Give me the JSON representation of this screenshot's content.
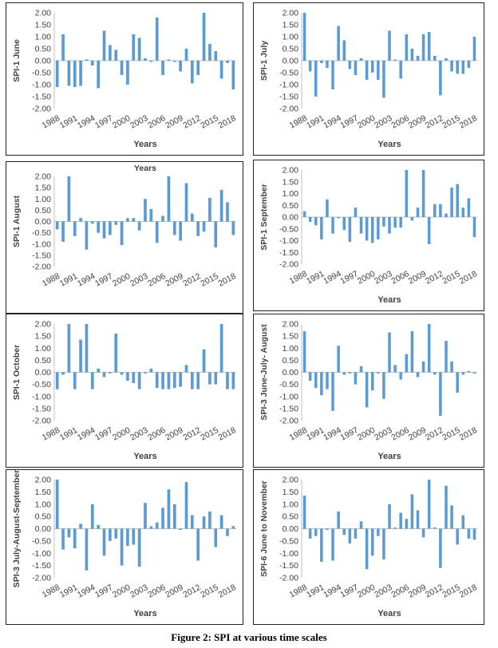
{
  "figure_caption": "Figure 2: SPI at various time scales",
  "colors": {
    "bar": "#5b9bd5",
    "axis": "#bfbfbf",
    "text": "#404040"
  },
  "chart_data": [
    {
      "type": "bar",
      "ylabel": "SPI-1  June",
      "xlabel": "Years",
      "title": "",
      "ylim": [
        -2,
        2
      ],
      "yticks": [
        "2.00",
        "1.50",
        "1.00",
        "0.50",
        "0.00",
        "-0.50",
        "-1.00",
        "-1.50",
        "-2.00"
      ],
      "xtick_labels": [
        "1988",
        "1991",
        "1994",
        "1997",
        "2000",
        "2003",
        "2006",
        "2009",
        "2012",
        "2015",
        "2018"
      ],
      "x": [
        1988,
        1989,
        1990,
        1991,
        1992,
        1993,
        1994,
        1995,
        1996,
        1997,
        1998,
        1999,
        2000,
        2001,
        2002,
        2003,
        2004,
        2005,
        2006,
        2007,
        2008,
        2009,
        2010,
        2011,
        2012,
        2013,
        2014,
        2015,
        2016,
        2017,
        2018
      ],
      "values": [
        -1.1,
        1.1,
        -1.05,
        -1.1,
        -1.05,
        0.05,
        -0.2,
        -1.15,
        1.25,
        0.65,
        0.45,
        -0.6,
        -1.0,
        1.1,
        0.95,
        0.1,
        -0.05,
        1.8,
        -0.6,
        0.05,
        -0.05,
        -0.45,
        0.5,
        -0.95,
        -0.6,
        2.0,
        0.7,
        0.4,
        -0.75,
        -0.1,
        -1.2
      ]
    },
    {
      "type": "bar",
      "ylabel": "SPI-1  July",
      "xlabel": "Years",
      "title": "",
      "ylim": [
        -2,
        2
      ],
      "yticks": [
        "2.00",
        "1.50",
        "1.00",
        "0.50",
        "0.00",
        "-0.50",
        "-1.00",
        "-1.50",
        "-2.00"
      ],
      "xtick_labels": [
        "1988",
        "1991",
        "1994",
        "1997",
        "2000",
        "2003",
        "2006",
        "2009",
        "2012",
        "2015",
        "2018"
      ],
      "x": [
        1988,
        1989,
        1990,
        1991,
        1992,
        1993,
        1994,
        1995,
        1996,
        1997,
        1998,
        1999,
        2000,
        2001,
        2002,
        2003,
        2004,
        2005,
        2006,
        2007,
        2008,
        2009,
        2010,
        2011,
        2012,
        2013,
        2014,
        2015,
        2016,
        2017,
        2018
      ],
      "values": [
        2.0,
        -0.45,
        -1.5,
        -0.1,
        -0.3,
        -1.2,
        1.45,
        0.85,
        -0.35,
        -0.6,
        0.1,
        -0.8,
        -0.5,
        -0.8,
        -1.55,
        1.25,
        0.05,
        -0.75,
        1.1,
        0.5,
        0.2,
        1.1,
        1.2,
        0.2,
        -1.45,
        0.1,
        -0.45,
        -0.55,
        -0.55,
        -0.3,
        1.0
      ]
    },
    {
      "type": "bar",
      "ylabel": "SPI-1 August",
      "xlabel": "",
      "title": "Years",
      "ylim": [
        -2,
        2
      ],
      "yticks": [
        "2.00",
        "1.50",
        "1.00",
        "0.50",
        "0.00",
        "-0.50",
        "-1.00",
        "-1.50",
        "-2.00"
      ],
      "xtick_labels": [
        "1988",
        "1991",
        "1994",
        "1997",
        "2000",
        "2003",
        "2006",
        "2009",
        "2012",
        "2015",
        "2018"
      ],
      "x": [
        1988,
        1989,
        1990,
        1991,
        1992,
        1993,
        1994,
        1995,
        1996,
        1997,
        1998,
        1999,
        2000,
        2001,
        2002,
        2003,
        2004,
        2005,
        2006,
        2007,
        2008,
        2009,
        2010,
        2011,
        2012,
        2013,
        2014,
        2015,
        2016,
        2017,
        2018
      ],
      "values": [
        -0.35,
        -0.9,
        2.0,
        -0.65,
        0.15,
        -1.25,
        -0.1,
        -0.5,
        -0.75,
        -0.6,
        -0.15,
        -1.05,
        0.15,
        0.15,
        -0.4,
        1.0,
        0.55,
        -0.95,
        0.25,
        2.0,
        -0.6,
        -0.85,
        1.7,
        0.35,
        -0.65,
        -0.45,
        1.05,
        -1.15,
        1.4,
        0.85,
        -0.6
      ]
    },
    {
      "type": "bar",
      "ylabel": "SPI-1 September",
      "xlabel": "Years",
      "title": "",
      "ylim": [
        -2,
        2
      ],
      "yticks": [
        "2.00",
        "1.50",
        "1.00",
        "0.50",
        "0.00",
        "-0.50",
        "-1.00",
        "-1.50",
        "-2.00"
      ],
      "xtick_labels": [
        "1988",
        "1991",
        "1994",
        "1997",
        "2000",
        "2003",
        "2006",
        "2009",
        "2012",
        "2015",
        "2018"
      ],
      "x": [
        1988,
        1989,
        1990,
        1991,
        1992,
        1993,
        1994,
        1995,
        1996,
        1997,
        1998,
        1999,
        2000,
        2001,
        2002,
        2003,
        2004,
        2005,
        2006,
        2007,
        2008,
        2009,
        2010,
        2011,
        2012,
        2013,
        2014,
        2015,
        2016,
        2017,
        2018
      ],
      "values": [
        0.25,
        -0.2,
        -0.35,
        -0.95,
        0.75,
        -0.7,
        -0.05,
        -0.55,
        -1.05,
        0.4,
        -0.7,
        -1.0,
        -1.1,
        -0.95,
        -0.4,
        -0.7,
        -0.45,
        -0.45,
        2.0,
        -0.15,
        0.4,
        2.0,
        -1.15,
        0.55,
        0.55,
        0.15,
        1.25,
        1.4,
        0.4,
        0.8,
        -0.85
      ]
    },
    {
      "type": "bar",
      "ylabel": "SPI-1 October",
      "xlabel": "Years",
      "title": "",
      "ylim": [
        -2,
        2
      ],
      "yticks": [
        "2.00",
        "1.50",
        "1.00",
        "0.50",
        "0.00",
        "-0.50",
        "-1.00",
        "-1.50",
        "-2.00"
      ],
      "xtick_labels": [
        "1988",
        "1991",
        "1994",
        "1997",
        "2000",
        "2003",
        "2006",
        "2009",
        "2012",
        "2015",
        "2018"
      ],
      "x": [
        1988,
        1989,
        1990,
        1991,
        1992,
        1993,
        1994,
        1995,
        1996,
        1997,
        1998,
        1999,
        2000,
        2001,
        2002,
        2003,
        2004,
        2005,
        2006,
        2007,
        2008,
        2009,
        2010,
        2011,
        2012,
        2013,
        2014,
        2015,
        2016,
        2017,
        2018
      ],
      "values": [
        -0.7,
        -0.1,
        2.0,
        -0.7,
        1.35,
        2.0,
        -0.7,
        0.15,
        -0.2,
        -0.05,
        1.6,
        -0.1,
        -0.35,
        -0.45,
        -0.7,
        -0.05,
        0.15,
        -0.65,
        -0.7,
        -0.7,
        -0.65,
        -0.6,
        0.3,
        -0.7,
        -0.7,
        0.95,
        -0.5,
        -0.5,
        2.0,
        -0.7,
        -0.7
      ]
    },
    {
      "type": "bar",
      "ylabel": "SPI-3 June-July- August",
      "xlabel": "Years",
      "title": "",
      "ylim": [
        -2,
        2
      ],
      "yticks": [
        "2.00",
        "1.50",
        "1.00",
        "0.50",
        "0.00",
        "-0.50",
        "-1.00",
        "-1.50",
        "-2.00"
      ],
      "xtick_labels": [
        "1988",
        "1991",
        "1994",
        "1997",
        "2000",
        "2003",
        "2006",
        "2009",
        "2012",
        "2015",
        "2018"
      ],
      "x": [
        1988,
        1989,
        1990,
        1991,
        1992,
        1993,
        1994,
        1995,
        1996,
        1997,
        1998,
        1999,
        2000,
        2001,
        2002,
        2003,
        2004,
        2005,
        2006,
        2007,
        2008,
        2009,
        2010,
        2011,
        2012,
        2013,
        2014,
        2015,
        2016,
        2017,
        2018
      ],
      "values": [
        1.7,
        -0.35,
        -0.65,
        -0.95,
        -0.7,
        -1.6,
        1.1,
        -0.1,
        -0.05,
        -0.5,
        0.25,
        -1.45,
        -0.75,
        -0.05,
        -1.1,
        1.65,
        0.3,
        -0.3,
        0.75,
        1.7,
        -0.2,
        0.45,
        2.0,
        -0.1,
        -1.8,
        1.3,
        0.45,
        -0.85,
        -0.1,
        0.05,
        -0.05
      ]
    },
    {
      "type": "bar",
      "ylabel": "SPI-3 July-August-September",
      "xlabel": "Years",
      "title": "",
      "ylim": [
        -2,
        2
      ],
      "yticks": [
        "2.00",
        "1.50",
        "1.00",
        "0.50",
        "0.00",
        "-0.50",
        "-1.00",
        "-1.50",
        "-2.00"
      ],
      "xtick_labels": [
        "1988",
        "1991",
        "1994",
        "1997",
        "2000",
        "2003",
        "2006",
        "2009",
        "2012",
        "2015",
        "2018"
      ],
      "x": [
        1988,
        1989,
        1990,
        1991,
        1992,
        1993,
        1994,
        1995,
        1996,
        1997,
        1998,
        1999,
        2000,
        2001,
        2002,
        2003,
        2004,
        2005,
        2006,
        2007,
        2008,
        2009,
        2010,
        2011,
        2012,
        2013,
        2014,
        2015,
        2016,
        2017,
        2018
      ],
      "values": [
        2.0,
        -0.85,
        -0.35,
        -0.8,
        0.2,
        -1.7,
        1.0,
        0.15,
        -1.1,
        -0.5,
        -0.4,
        -1.5,
        -0.7,
        -0.65,
        -1.55,
        1.05,
        0.1,
        0.25,
        0.85,
        1.6,
        1.0,
        -0.05,
        1.9,
        0.55,
        -1.3,
        0.5,
        0.7,
        -0.75,
        0.55,
        -0.3,
        0.1
      ]
    },
    {
      "type": "bar",
      "ylabel": "SPI-6 June to November",
      "xlabel": "Years",
      "title": "",
      "ylim": [
        -2,
        2
      ],
      "yticks": [
        "2.00",
        "1.50",
        "1.00",
        "0.50",
        "0.00",
        "-0.50",
        "-1.00",
        "-1.50",
        "-2.00"
      ],
      "xtick_labels": [
        "1988",
        "1991",
        "1994",
        "1997",
        "2000",
        "2003",
        "2006",
        "2009",
        "2012",
        "2015",
        "2018"
      ],
      "x": [
        1988,
        1989,
        1990,
        1991,
        1992,
        1993,
        1994,
        1995,
        1996,
        1997,
        1998,
        1999,
        2000,
        2001,
        2002,
        2003,
        2004,
        2005,
        2006,
        2007,
        2008,
        2009,
        2010,
        2011,
        2012,
        2013,
        2014,
        2015,
        2016,
        2017,
        2018
      ],
      "values": [
        1.35,
        -0.4,
        -0.3,
        -1.35,
        -0.05,
        -1.3,
        0.7,
        -0.25,
        -0.6,
        -0.4,
        0.3,
        -1.65,
        -1.1,
        -0.3,
        -1.25,
        1.0,
        0.05,
        0.65,
        0.4,
        1.4,
        0.75,
        -0.35,
        2.0,
        0.05,
        -1.6,
        1.75,
        0.95,
        -0.65,
        0.55,
        -0.4,
        -0.45
      ]
    }
  ]
}
